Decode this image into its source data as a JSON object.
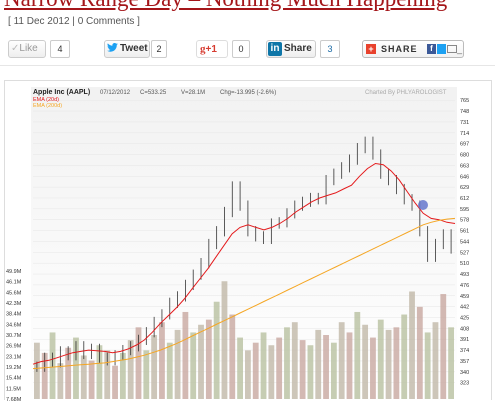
{
  "post": {
    "title": "Narrow Range Day – Nothing Much Happening",
    "meta_open": "[ ",
    "date": "11 Dec 2012",
    "separator": " | ",
    "comments": "0 Comments",
    "meta_close": " ]"
  },
  "share_bar": {
    "like_label": "Like",
    "like_count": "4",
    "tweet_label": "Tweet",
    "tweet_count": "2",
    "gplus_label": "+1",
    "gplus_count": "0",
    "linkedin_label": "Share",
    "linkedin_count": "3",
    "sharethis_label": "SHARE",
    "colors": {
      "twitter": "#1da1f2",
      "gplus": "#d73d32",
      "linkedin": "#0e76a8",
      "sharethis": "#e8412c",
      "facebook": "#3b5998"
    }
  },
  "chart": {
    "header": {
      "symbol": "Apple Inc (AAPL)",
      "date": "07/12/2012",
      "close": "C=533.25",
      "volume": "V=28.1M",
      "change": "Chg=-13.995 (-2.6%)",
      "credit": "Charted By PHLYAROLOGIST"
    },
    "legend": [
      {
        "label": "EMA (20d)",
        "color": "#e41a1c"
      },
      {
        "label": "EMA (200d)",
        "color": "#f5a623"
      }
    ]
  },
  "chart_data": {
    "type": "line",
    "title": "Apple Inc (AAPL)",
    "y_price_ticks": [
      "765",
      "748",
      "731",
      "714",
      "697",
      "680",
      "663",
      "646",
      "629",
      "612",
      "595",
      "578",
      "561",
      "544",
      "527",
      "510",
      "493",
      "476",
      "459",
      "442",
      "425",
      "408",
      "391",
      "374",
      "357",
      "340",
      "323"
    ],
    "y_volume_ticks": [
      "49.9M",
      "46.1M",
      "45.6M",
      "42.3M",
      "38.4M",
      "34.6M",
      "30.7M",
      "26.9M",
      "23.1M",
      "19.2M",
      "15.4M",
      "11.5M",
      "7.68M"
    ],
    "price_range": [
      310,
      770
    ],
    "series": [
      {
        "name": "EMA (20d)",
        "color": "#e41a1c",
        "values": [
          352,
          356,
          358,
          362,
          366,
          370,
          372,
          374,
          373,
          372,
          370,
          372,
          376,
          382,
          390,
          402,
          416,
          428,
          440,
          454,
          470,
          486,
          502,
          520,
          538,
          556,
          566,
          570,
          566,
          562,
          566,
          572,
          580,
          590,
          598,
          606,
          612,
          616,
          620,
          626,
          632,
          646,
          658,
          666,
          664,
          654,
          640,
          622,
          604,
          588,
          580,
          578,
          574,
          572
        ]
      },
      {
        "name": "EMA (200d)",
        "color": "#f5a623",
        "values": [
          345,
          346,
          347,
          348,
          349,
          350,
          351,
          352,
          353,
          354,
          356,
          358,
          360,
          363,
          366,
          370,
          374,
          379,
          384,
          390,
          396,
          402,
          408,
          414,
          420,
          426,
          432,
          438,
          444,
          450,
          456,
          462,
          468,
          474,
          480,
          486,
          492,
          498,
          504,
          510,
          516,
          522,
          528,
          534,
          540,
          546,
          552,
          558,
          564,
          570,
          574,
          577,
          579,
          580
        ]
      },
      {
        "name": "Close",
        "values": [
          348,
          362,
          355,
          372,
          366,
          380,
          368,
          376,
          362,
          358,
          366,
          374,
          380,
          390,
          402,
          418,
          430,
          448,
          458,
          476,
          492,
          510,
          540,
          560,
          590,
          630,
          600,
          560,
          552,
          548,
          572,
          574,
          588,
          600,
          606,
          612,
          610,
          640,
          650,
          660,
          672,
          690,
          700,
          680,
          650,
          640,
          626,
          610,
          600,
          560,
          520,
          540,
          555,
          533
        ]
      }
    ],
    "volume_values": [
      22,
      18,
      26,
      14,
      20,
      24,
      17,
      15,
      21,
      19,
      13,
      18,
      23,
      28,
      19,
      25,
      30,
      22,
      27,
      34,
      26,
      29,
      31,
      38,
      46,
      33,
      24,
      19,
      22,
      26,
      21,
      24,
      28,
      30,
      23,
      21,
      27,
      25,
      22,
      30,
      26,
      34,
      29,
      24,
      31,
      27,
      28,
      33,
      42,
      36,
      26,
      30,
      41,
      28
    ],
    "ylabel": "",
    "xlabel": "",
    "grid": true,
    "legend_position": "top-left"
  }
}
